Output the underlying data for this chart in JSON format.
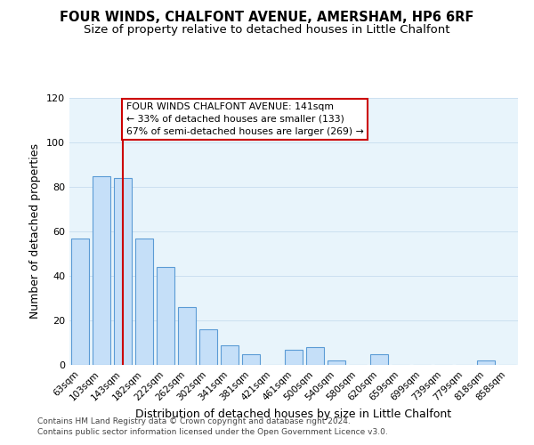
{
  "title": "FOUR WINDS, CHALFONT AVENUE, AMERSHAM, HP6 6RF",
  "subtitle": "Size of property relative to detached houses in Little Chalfont",
  "xlabel": "Distribution of detached houses by size in Little Chalfont",
  "ylabel": "Number of detached properties",
  "bar_labels": [
    "63sqm",
    "103sqm",
    "143sqm",
    "182sqm",
    "222sqm",
    "262sqm",
    "302sqm",
    "341sqm",
    "381sqm",
    "421sqm",
    "461sqm",
    "500sqm",
    "540sqm",
    "580sqm",
    "620sqm",
    "659sqm",
    "699sqm",
    "739sqm",
    "779sqm",
    "818sqm",
    "858sqm"
  ],
  "bar_values": [
    57,
    85,
    84,
    57,
    44,
    26,
    16,
    9,
    5,
    0,
    7,
    8,
    2,
    0,
    5,
    0,
    0,
    0,
    0,
    2,
    0
  ],
  "bar_color": "#c5dff8",
  "bar_edge_color": "#5b9bd5",
  "vline_x_index": 2,
  "vline_color": "#cc0000",
  "ylim": [
    0,
    120
  ],
  "yticks": [
    0,
    20,
    40,
    60,
    80,
    100,
    120
  ],
  "annotation_line1": "FOUR WINDS CHALFONT AVENUE: 141sqm",
  "annotation_line2": "← 33% of detached houses are smaller (133)",
  "annotation_line3": "67% of semi-detached houses are larger (269) →",
  "annotation_box_edge_color": "#cc0000",
  "annotation_box_facecolor": "white",
  "footer_line1": "Contains HM Land Registry data © Crown copyright and database right 2024.",
  "footer_line2": "Contains public sector information licensed under the Open Government Licence v3.0.",
  "title_fontsize": 10.5,
  "subtitle_fontsize": 9.5,
  "grid_color": "#cce0f0",
  "background_color": "#e8f4fb"
}
